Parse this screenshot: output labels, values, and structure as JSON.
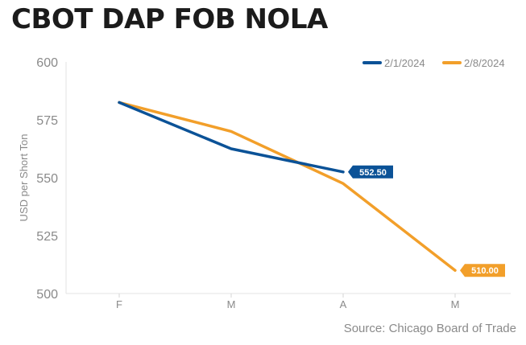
{
  "chart_data": {
    "type": "line",
    "title": "CBOT DAP FOB NOLA",
    "ylabel": "USD per Short Ton",
    "xlabel": "",
    "categories": [
      "F",
      "M",
      "A",
      "M"
    ],
    "ylim": [
      500,
      600
    ],
    "yticks": [
      500,
      525,
      550,
      575,
      600
    ],
    "grid": false,
    "legend_position": "top-right",
    "source": "Source: Chicago Board of Trade",
    "series": [
      {
        "name": "2/1/2024",
        "color": "#0b5297",
        "values": [
          582.5,
          562.5,
          552.5,
          null
        ],
        "end_label": "552.50"
      },
      {
        "name": "2/8/2024",
        "color": "#f29f2a",
        "values": [
          582.5,
          570.0,
          547.5,
          510.0
        ],
        "end_label": "510.00"
      }
    ]
  }
}
